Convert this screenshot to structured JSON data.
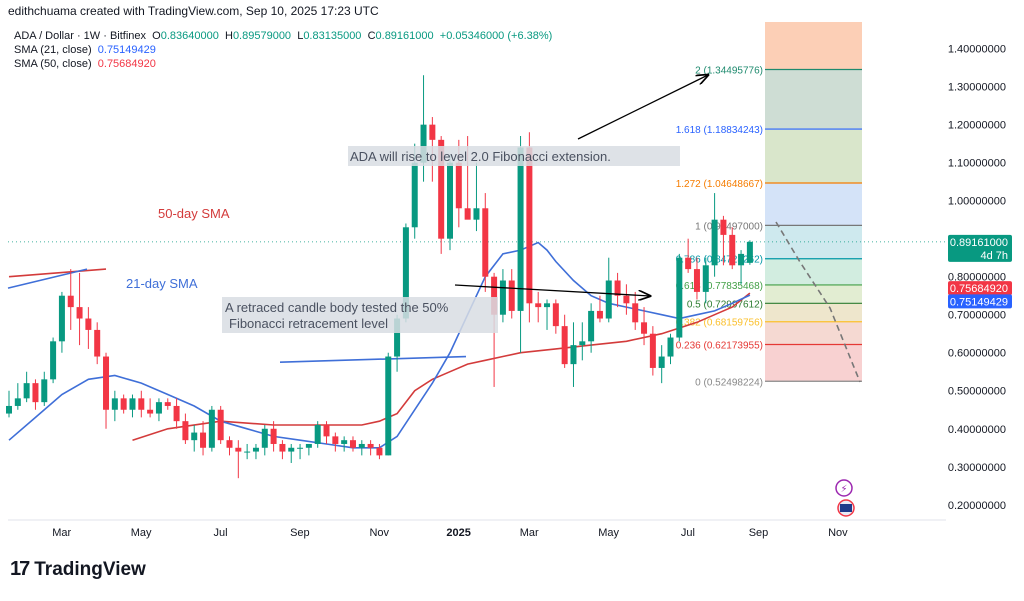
{
  "header": {
    "creator_line": "edithchuama created with TradingView.com, Sep 10, 2025 17:23 UTC"
  },
  "legend": {
    "symbol": "ADA / Dollar · 1W · Bitfinex",
    "ohlc": {
      "o_label": "O",
      "o": "0.83640000",
      "h_label": "H",
      "h": "0.89579000",
      "l_label": "L",
      "l": "0.83135000",
      "c_label": "C",
      "c": "0.89161000",
      "change": "+0.05346000 (+6.38%)"
    },
    "sma21_label": "SMA (21, close)",
    "sma21_value": "0.75149429",
    "sma50_label": "SMA (50, close)",
    "sma50_value": "0.75684920"
  },
  "brand": {
    "logo": "17",
    "name": "TradingView"
  },
  "colors": {
    "up": "#089981",
    "down": "#f23645",
    "sma21": "#3f6fd8",
    "sma50": "#d33b3b",
    "fib_086_upper": "#f7c9a9",
    "fib_top_band": "#f9b997",
    "annotation_bg": "#d8dde3"
  },
  "annotations": {
    "sma50_label": "50-day SMA",
    "sma21_label": "21-day SMA",
    "upper_note": "ADA  will rise to level 2.0 Fibonacci extension.",
    "lower_note_line1": "A retraced candle body tested the 50%",
    "lower_note_line2": "Fibonacci retracement level"
  },
  "price_tags": {
    "last": "0.89161000",
    "countdown": "4d 7h",
    "sma50": "0.75684920",
    "sma21": "0.75149429"
  },
  "chart_data": {
    "type": "candlestick",
    "title": "ADA / Dollar · 1W · Bitfinex",
    "interval": "1W",
    "y_axis": {
      "position": "right",
      "ylim": [
        0.16,
        1.47
      ],
      "ticks": [
        "1.40000000",
        "1.30000000",
        "1.20000000",
        "1.10000000",
        "1.00000000",
        "0.90000000",
        "0.80000000",
        "0.70000000",
        "0.60000000",
        "0.50000000",
        "0.40000000",
        "0.30000000",
        "0.20000000"
      ],
      "tick_values": [
        1.4,
        1.3,
        1.2,
        1.1,
        1.0,
        0.9,
        0.8,
        0.7,
        0.6,
        0.5,
        0.4,
        0.3,
        0.2
      ]
    },
    "x_axis": {
      "labels": [
        {
          "text": "Mar",
          "week": 7
        },
        {
          "text": "May",
          "week": 16
        },
        {
          "text": "Jul",
          "week": 25
        },
        {
          "text": "Sep",
          "week": 34
        },
        {
          "text": "Nov",
          "week": 43
        },
        {
          "text": "2025",
          "week": 52,
          "bold": true
        },
        {
          "text": "Mar",
          "week": 60
        },
        {
          "text": "May",
          "week": 69
        },
        {
          "text": "Jul",
          "week": 78
        },
        {
          "text": "Sep",
          "week": 86
        },
        {
          "text": "Nov",
          "week": 95
        }
      ]
    },
    "candles": [
      {
        "o": 0.44,
        "h": 0.5,
        "l": 0.43,
        "c": 0.46
      },
      {
        "o": 0.46,
        "h": 0.52,
        "l": 0.45,
        "c": 0.48
      },
      {
        "o": 0.48,
        "h": 0.55,
        "l": 0.47,
        "c": 0.52
      },
      {
        "o": 0.52,
        "h": 0.53,
        "l": 0.45,
        "c": 0.47
      },
      {
        "o": 0.47,
        "h": 0.55,
        "l": 0.46,
        "c": 0.53
      },
      {
        "o": 0.53,
        "h": 0.64,
        "l": 0.52,
        "c": 0.63
      },
      {
        "o": 0.63,
        "h": 0.76,
        "l": 0.6,
        "c": 0.75
      },
      {
        "o": 0.75,
        "h": 0.82,
        "l": 0.66,
        "c": 0.72
      },
      {
        "o": 0.72,
        "h": 0.81,
        "l": 0.62,
        "c": 0.69
      },
      {
        "o": 0.69,
        "h": 0.72,
        "l": 0.61,
        "c": 0.66
      },
      {
        "o": 0.66,
        "h": 0.68,
        "l": 0.57,
        "c": 0.59
      },
      {
        "o": 0.59,
        "h": 0.6,
        "l": 0.4,
        "c": 0.45
      },
      {
        "o": 0.45,
        "h": 0.5,
        "l": 0.42,
        "c": 0.48
      },
      {
        "o": 0.48,
        "h": 0.49,
        "l": 0.44,
        "c": 0.45
      },
      {
        "o": 0.45,
        "h": 0.49,
        "l": 0.43,
        "c": 0.48
      },
      {
        "o": 0.48,
        "h": 0.5,
        "l": 0.43,
        "c": 0.45
      },
      {
        "o": 0.45,
        "h": 0.48,
        "l": 0.43,
        "c": 0.44
      },
      {
        "o": 0.44,
        "h": 0.48,
        "l": 0.42,
        "c": 0.47
      },
      {
        "o": 0.47,
        "h": 0.48,
        "l": 0.45,
        "c": 0.46
      },
      {
        "o": 0.46,
        "h": 0.48,
        "l": 0.4,
        "c": 0.42
      },
      {
        "o": 0.42,
        "h": 0.44,
        "l": 0.36,
        "c": 0.37
      },
      {
        "o": 0.37,
        "h": 0.41,
        "l": 0.34,
        "c": 0.39
      },
      {
        "o": 0.39,
        "h": 0.42,
        "l": 0.33,
        "c": 0.35
      },
      {
        "o": 0.35,
        "h": 0.46,
        "l": 0.34,
        "c": 0.45
      },
      {
        "o": 0.45,
        "h": 0.46,
        "l": 0.36,
        "c": 0.37
      },
      {
        "o": 0.37,
        "h": 0.38,
        "l": 0.33,
        "c": 0.35
      },
      {
        "o": 0.35,
        "h": 0.37,
        "l": 0.27,
        "c": 0.34
      },
      {
        "o": 0.34,
        "h": 0.36,
        "l": 0.32,
        "c": 0.34
      },
      {
        "o": 0.34,
        "h": 0.36,
        "l": 0.32,
        "c": 0.35
      },
      {
        "o": 0.35,
        "h": 0.41,
        "l": 0.33,
        "c": 0.4
      },
      {
        "o": 0.4,
        "h": 0.42,
        "l": 0.34,
        "c": 0.36
      },
      {
        "o": 0.36,
        "h": 0.37,
        "l": 0.32,
        "c": 0.34
      },
      {
        "o": 0.34,
        "h": 0.36,
        "l": 0.31,
        "c": 0.35
      },
      {
        "o": 0.35,
        "h": 0.36,
        "l": 0.32,
        "c": 0.35
      },
      {
        "o": 0.35,
        "h": 0.36,
        "l": 0.33,
        "c": 0.36
      },
      {
        "o": 0.36,
        "h": 0.42,
        "l": 0.35,
        "c": 0.41
      },
      {
        "o": 0.41,
        "h": 0.42,
        "l": 0.36,
        "c": 0.38
      },
      {
        "o": 0.38,
        "h": 0.39,
        "l": 0.34,
        "c": 0.36
      },
      {
        "o": 0.36,
        "h": 0.38,
        "l": 0.34,
        "c": 0.37
      },
      {
        "o": 0.37,
        "h": 0.38,
        "l": 0.34,
        "c": 0.35
      },
      {
        "o": 0.35,
        "h": 0.37,
        "l": 0.33,
        "c": 0.36
      },
      {
        "o": 0.36,
        "h": 0.37,
        "l": 0.33,
        "c": 0.35
      },
      {
        "o": 0.35,
        "h": 0.36,
        "l": 0.32,
        "c": 0.33
      },
      {
        "o": 0.33,
        "h": 0.6,
        "l": 0.33,
        "c": 0.59
      },
      {
        "o": 0.59,
        "h": 0.7,
        "l": 0.55,
        "c": 0.69
      },
      {
        "o": 0.69,
        "h": 0.94,
        "l": 0.68,
        "c": 0.93
      },
      {
        "o": 0.93,
        "h": 1.15,
        "l": 0.9,
        "c": 1.1
      },
      {
        "o": 1.1,
        "h": 1.33,
        "l": 1.05,
        "c": 1.2
      },
      {
        "o": 1.2,
        "h": 1.22,
        "l": 1.05,
        "c": 1.16
      },
      {
        "o": 1.16,
        "h": 1.17,
        "l": 0.86,
        "c": 0.9
      },
      {
        "o": 0.9,
        "h": 1.12,
        "l": 0.87,
        "c": 1.1
      },
      {
        "o": 1.1,
        "h": 1.16,
        "l": 0.93,
        "c": 0.98
      },
      {
        "o": 0.98,
        "h": 1.17,
        "l": 0.96,
        "c": 0.95
      },
      {
        "o": 0.95,
        "h": 1.1,
        "l": 0.92,
        "c": 0.98
      },
      {
        "o": 0.98,
        "h": 1.02,
        "l": 0.76,
        "c": 0.8
      },
      {
        "o": 0.8,
        "h": 0.81,
        "l": 0.51,
        "c": 0.7
      },
      {
        "o": 0.7,
        "h": 0.82,
        "l": 0.68,
        "c": 0.79
      },
      {
        "o": 0.79,
        "h": 0.82,
        "l": 0.69,
        "c": 0.71
      },
      {
        "o": 0.71,
        "h": 1.17,
        "l": 0.6,
        "c": 1.14
      },
      {
        "o": 1.14,
        "h": 1.18,
        "l": 0.68,
        "c": 0.73
      },
      {
        "o": 0.73,
        "h": 0.76,
        "l": 0.68,
        "c": 0.72
      },
      {
        "o": 0.72,
        "h": 0.74,
        "l": 0.66,
        "c": 0.73
      },
      {
        "o": 0.73,
        "h": 0.74,
        "l": 0.65,
        "c": 0.67
      },
      {
        "o": 0.67,
        "h": 0.7,
        "l": 0.56,
        "c": 0.57
      },
      {
        "o": 0.57,
        "h": 0.68,
        "l": 0.51,
        "c": 0.62
      },
      {
        "o": 0.62,
        "h": 0.68,
        "l": 0.58,
        "c": 0.63
      },
      {
        "o": 0.63,
        "h": 0.73,
        "l": 0.6,
        "c": 0.71
      },
      {
        "o": 0.71,
        "h": 0.75,
        "l": 0.68,
        "c": 0.69
      },
      {
        "o": 0.69,
        "h": 0.85,
        "l": 0.68,
        "c": 0.79
      },
      {
        "o": 0.79,
        "h": 0.81,
        "l": 0.72,
        "c": 0.75
      },
      {
        "o": 0.75,
        "h": 0.78,
        "l": 0.7,
        "c": 0.73
      },
      {
        "o": 0.73,
        "h": 0.76,
        "l": 0.66,
        "c": 0.68
      },
      {
        "o": 0.68,
        "h": 0.72,
        "l": 0.62,
        "c": 0.65
      },
      {
        "o": 0.65,
        "h": 0.67,
        "l": 0.54,
        "c": 0.56
      },
      {
        "o": 0.56,
        "h": 0.62,
        "l": 0.52,
        "c": 0.59
      },
      {
        "o": 0.59,
        "h": 0.65,
        "l": 0.57,
        "c": 0.64
      },
      {
        "o": 0.64,
        "h": 0.86,
        "l": 0.63,
        "c": 0.85
      },
      {
        "o": 0.85,
        "h": 0.9,
        "l": 0.81,
        "c": 0.82
      },
      {
        "o": 0.82,
        "h": 0.85,
        "l": 0.74,
        "c": 0.76
      },
      {
        "o": 0.76,
        "h": 0.85,
        "l": 0.73,
        "c": 0.83
      },
      {
        "o": 0.83,
        "h": 1.02,
        "l": 0.8,
        "c": 0.95
      },
      {
        "o": 0.95,
        "h": 0.96,
        "l": 0.83,
        "c": 0.91
      },
      {
        "o": 0.91,
        "h": 0.93,
        "l": 0.82,
        "c": 0.83
      },
      {
        "o": 0.83,
        "h": 0.87,
        "l": 0.78,
        "c": 0.86
      },
      {
        "o": 0.8364,
        "h": 0.89579,
        "l": 0.83135,
        "c": 0.89161
      }
    ],
    "sma21": {
      "name": "SMA (21, close)",
      "last": 0.75149429,
      "points": [
        [
          0,
          0.37
        ],
        [
          3,
          0.43
        ],
        [
          6,
          0.49
        ],
        [
          9,
          0.53
        ],
        [
          12,
          0.54
        ],
        [
          15,
          0.52
        ],
        [
          18,
          0.49
        ],
        [
          21,
          0.46
        ],
        [
          24,
          0.42
        ],
        [
          27,
          0.4
        ],
        [
          30,
          0.38
        ],
        [
          33,
          0.37
        ],
        [
          36,
          0.36
        ],
        [
          39,
          0.35
        ],
        [
          42,
          0.35
        ],
        [
          44,
          0.38
        ],
        [
          46,
          0.45
        ],
        [
          48,
          0.52
        ],
        [
          50,
          0.6
        ],
        [
          52,
          0.7
        ],
        [
          54,
          0.8
        ],
        [
          56,
          0.86
        ],
        [
          58,
          0.87
        ],
        [
          59,
          0.88
        ],
        [
          60,
          0.89
        ],
        [
          61,
          0.87
        ],
        [
          62,
          0.84
        ],
        [
          64,
          0.79
        ],
        [
          66,
          0.75
        ],
        [
          68,
          0.73
        ],
        [
          70,
          0.72
        ],
        [
          72,
          0.71
        ],
        [
          74,
          0.7
        ],
        [
          76,
          0.69
        ],
        [
          78,
          0.7
        ],
        [
          80,
          0.71
        ],
        [
          82,
          0.73
        ],
        [
          84,
          0.75149429
        ]
      ]
    },
    "sma50": {
      "name": "SMA (50, close)",
      "last": 0.7568492,
      "points": [
        [
          0,
          0.8
        ],
        [
          11,
          0.82
        ],
        [
          14,
          0.37
        ],
        [
          18,
          0.4
        ],
        [
          24,
          0.42
        ],
        [
          30,
          0.41
        ],
        [
          36,
          0.41
        ],
        [
          40,
          0.41
        ],
        [
          42,
          0.42
        ],
        [
          44,
          0.44
        ],
        [
          46,
          0.5
        ],
        [
          48,
          0.53
        ],
        [
          50,
          0.55
        ],
        [
          52,
          0.57
        ],
        [
          54,
          0.58
        ],
        [
          56,
          0.59
        ],
        [
          58,
          0.6
        ],
        [
          62,
          0.61
        ],
        [
          66,
          0.62
        ],
        [
          70,
          0.63
        ],
        [
          74,
          0.65
        ],
        [
          78,
          0.68
        ],
        [
          80,
          0.7
        ],
        [
          82,
          0.72
        ],
        [
          84,
          0.7568492
        ]
      ]
    },
    "fibonacci": {
      "levels": [
        {
          "ratio": "2",
          "value": "1.34495776",
          "price": 1.34495776
        },
        {
          "ratio": "1.618",
          "value": "1.18834243",
          "price": 1.18834243
        },
        {
          "ratio": "1.272",
          "value": "1.04648667",
          "price": 1.04648667
        },
        {
          "ratio": "1",
          "value": "0.93497000",
          "price": 0.93497
        },
        {
          "ratio": "0.786",
          "value": "0.84723262",
          "price": 0.84723262
        },
        {
          "ratio": "0.618",
          "value": "0.77835468",
          "price": 0.77835468
        },
        {
          "ratio": "0.5",
          "value": "0.72997612",
          "price": 0.72997612
        },
        {
          "ratio": "0.382",
          "value": "0.68159756",
          "price": 0.68159756
        },
        {
          "ratio": "0.236",
          "value": "0.62173955",
          "price": 0.62173955
        },
        {
          "ratio": "0",
          "value": "0.52498224",
          "price": 0.52498224
        }
      ],
      "label_format": "ratio (value)"
    },
    "grid": false,
    "legend_position": "top-left"
  }
}
